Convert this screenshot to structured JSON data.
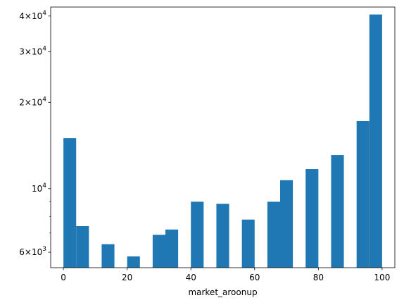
{
  "chart_data": {
    "type": "bar",
    "xlabel": "market_aroonup",
    "ylabel": "",
    "yscale": "log",
    "xlim": [
      -4,
      104
    ],
    "ylim": [
      5300,
      43000
    ],
    "color": "#1f77b4",
    "grid": false,
    "legend": "none",
    "bin_width": 4,
    "bins": [
      {
        "x0": 0,
        "x1": 4,
        "count": 15000
      },
      {
        "x0": 4,
        "x1": 8,
        "count": 7400
      },
      {
        "x0": 12,
        "x1": 16,
        "count": 6400
      },
      {
        "x0": 20,
        "x1": 24,
        "count": 5800
      },
      {
        "x0": 28,
        "x1": 32,
        "count": 6900
      },
      {
        "x0": 32,
        "x1": 36,
        "count": 7200
      },
      {
        "x0": 40,
        "x1": 44,
        "count": 9000
      },
      {
        "x0": 48,
        "x1": 52,
        "count": 8850
      },
      {
        "x0": 56,
        "x1": 60,
        "count": 7800
      },
      {
        "x0": 64,
        "x1": 68,
        "count": 9000
      },
      {
        "x0": 68,
        "x1": 72,
        "count": 10700
      },
      {
        "x0": 76,
        "x1": 80,
        "count": 11700
      },
      {
        "x0": 84,
        "x1": 88,
        "count": 13100
      },
      {
        "x0": 92,
        "x1": 96,
        "count": 17200
      },
      {
        "x0": 96,
        "x1": 100,
        "count": 40500
      }
    ],
    "x_ticks": [
      {
        "value": 0,
        "label": "0"
      },
      {
        "value": 20,
        "label": "20"
      },
      {
        "value": 40,
        "label": "40"
      },
      {
        "value": 60,
        "label": "60"
      },
      {
        "value": 80,
        "label": "80"
      },
      {
        "value": 100,
        "label": "100"
      }
    ],
    "y_ticks": [
      {
        "value": 6000,
        "mant": "6",
        "exp": "3"
      },
      {
        "value": 10000,
        "mant": "",
        "exp": "4"
      },
      {
        "value": 20000,
        "mant": "2",
        "exp": "4"
      },
      {
        "value": 30000,
        "mant": "3",
        "exp": "4"
      },
      {
        "value": 40000,
        "mant": "4",
        "exp": "4"
      }
    ],
    "y_minor_ticks": [
      7000,
      8000,
      9000
    ]
  }
}
